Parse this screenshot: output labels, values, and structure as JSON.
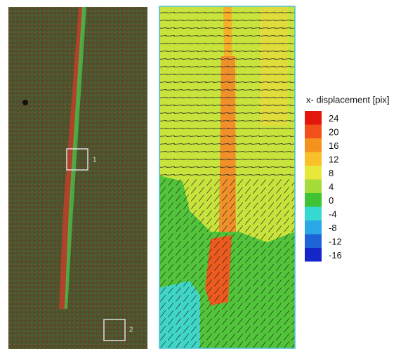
{
  "left_panel": {
    "markers": [
      "1",
      "2"
    ]
  },
  "colorbar": {
    "title": "x- displacement [pix]",
    "ticks": [
      24,
      20,
      16,
      12,
      8,
      4,
      0,
      -4,
      -8,
      -12,
      -16
    ],
    "colors": [
      "#e3160e",
      "#f2501a",
      "#f5921e",
      "#f9c02a",
      "#e8e83a",
      "#a6dc3a",
      "#3fc234",
      "#35d9d2",
      "#2aa8e6",
      "#1f63d8",
      "#1526c8"
    ]
  }
}
